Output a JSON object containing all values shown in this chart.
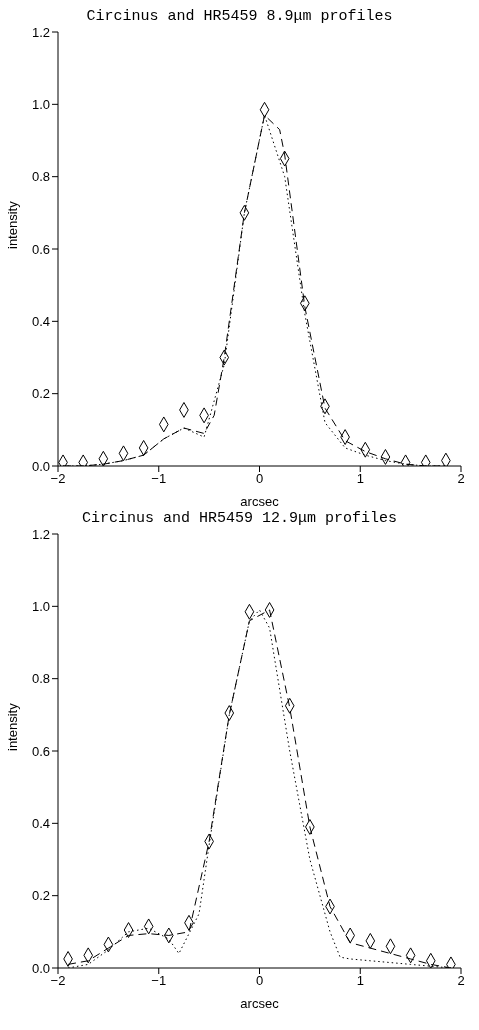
{
  "chart_data": [
    {
      "type": "line",
      "title": "Circinus and HR5459 8.9μm profiles",
      "xlabel": "arcsec",
      "ylabel": "intensity",
      "xlim": [
        -2,
        2
      ],
      "xticks": [
        -2,
        -1,
        0,
        1,
        2
      ],
      "ylim": [
        0,
        1.2
      ],
      "yticks": [
        {
          "value": 0,
          "label": "0.0"
        },
        {
          "value": 0.2,
          "label": "0.2"
        },
        {
          "value": 0.4,
          "label": "0.4"
        },
        {
          "value": 0.6,
          "label": "0.6"
        },
        {
          "value": 0.8,
          "label": "0.8"
        },
        {
          "value": 1,
          "label": "1.0"
        },
        {
          "value": 1.2,
          "label": "1.2"
        }
      ],
      "grid": false,
      "series": [
        {
          "line_style": "dashed",
          "color": "#000000",
          "x": [
            -1.95,
            -1.75,
            -1.55,
            -1.35,
            -1.15,
            -0.95,
            -0.75,
            -0.55,
            -0.45,
            -0.35,
            -0.15,
            0.05,
            0.2,
            0.25,
            0.45,
            0.65,
            0.85,
            1.05,
            1.25,
            1.45,
            1.65,
            1.85
          ],
          "values": [
            0,
            0,
            0.005,
            0.015,
            0.03,
            0.075,
            0.105,
            0.09,
            0.14,
            0.3,
            0.7,
            0.97,
            0.93,
            0.86,
            0.44,
            0.16,
            0.07,
            0.04,
            0.02,
            0.005,
            0,
            0
          ]
        },
        {
          "line_style": "dotted",
          "color": "#000000",
          "x": [
            -1.95,
            -1.75,
            -1.55,
            -1.35,
            -1.15,
            -0.95,
            -0.75,
            -0.55,
            -0.35,
            -0.15,
            0.05,
            0.25,
            0.45,
            0.65,
            0.85,
            1.05,
            1.25,
            1.45,
            1.65,
            1.85
          ],
          "values": [
            0,
            0,
            0.005,
            0.015,
            0.03,
            0.075,
            0.105,
            0.08,
            0.28,
            0.7,
            0.97,
            0.8,
            0.42,
            0.12,
            0.05,
            0.03,
            0.015,
            0.005,
            0,
            0
          ]
        },
        {
          "type": "scatter",
          "marker": "diamond",
          "color": "#000000",
          "x": [
            -1.95,
            -1.75,
            -1.55,
            -1.35,
            -1.15,
            -0.95,
            -0.75,
            -0.55,
            -0.35,
            -0.15,
            0.05,
            0.25,
            0.45,
            0.65,
            0.85,
            1.05,
            1.25,
            1.45,
            1.65,
            1.85
          ],
          "values": [
            0.01,
            0.01,
            0.02,
            0.035,
            0.05,
            0.115,
            0.155,
            0.14,
            0.3,
            0.7,
            0.985,
            0.85,
            0.45,
            0.165,
            0.08,
            0.045,
            0.025,
            0.01,
            0.01,
            0.015
          ]
        }
      ]
    },
    {
      "type": "line",
      "title": "Circinus and HR5459 12.9μm profiles",
      "xlabel": "arcsec",
      "ylabel": "intensity",
      "xlim": [
        -2,
        2
      ],
      "xticks": [
        -2,
        -1,
        0,
        1,
        2
      ],
      "ylim": [
        0,
        1.2
      ],
      "yticks": [
        {
          "value": 0,
          "label": "0.0"
        },
        {
          "value": 0.2,
          "label": "0.2"
        },
        {
          "value": 0.4,
          "label": "0.4"
        },
        {
          "value": 0.6,
          "label": "0.6"
        },
        {
          "value": 0.8,
          "label": "0.8"
        },
        {
          "value": 1,
          "label": "1.0"
        },
        {
          "value": 1.2,
          "label": "1.2"
        }
      ],
      "grid": false,
      "series": [
        {
          "line_style": "dashed",
          "color": "#000000",
          "x": [
            -1.9,
            -1.7,
            -1.5,
            -1.3,
            -1.1,
            -0.9,
            -0.7,
            -0.5,
            -0.3,
            -0.1,
            0.1,
            0.3,
            0.5,
            0.7,
            0.9,
            1.1,
            1.3,
            1.5,
            1.7,
            1.9
          ],
          "values": [
            0.01,
            0.02,
            0.055,
            0.09,
            0.095,
            0.09,
            0.1,
            0.35,
            0.7,
            0.96,
            0.99,
            0.72,
            0.39,
            0.17,
            0.07,
            0.055,
            0.04,
            0.025,
            0.01,
            0
          ]
        },
        {
          "line_style": "dotted",
          "color": "#000000",
          "x": [
            -1.9,
            -1.7,
            -1.5,
            -1.3,
            -1.1,
            -0.9,
            -0.8,
            -0.6,
            -0.5,
            -0.3,
            -0.1,
            0,
            0.1,
            0.3,
            0.5,
            0.7,
            0.8,
            0.9,
            1.1,
            1.5,
            1.9
          ],
          "values": [
            0,
            0.01,
            0.05,
            0.1,
            0.11,
            0.08,
            0.04,
            0.15,
            0.34,
            0.7,
            0.96,
            0.99,
            0.94,
            0.6,
            0.3,
            0.1,
            0.03,
            0.025,
            0.02,
            0.01,
            0
          ]
        },
        {
          "type": "scatter",
          "marker": "diamond",
          "color": "#000000",
          "x": [
            -1.9,
            -1.7,
            -1.5,
            -1.3,
            -1.1,
            -0.9,
            -0.7,
            -0.5,
            -0.3,
            -0.1,
            0.1,
            0.3,
            0.5,
            0.7,
            0.9,
            1.1,
            1.3,
            1.5,
            1.7,
            1.9
          ],
          "values": [
            0.025,
            0.035,
            0.065,
            0.105,
            0.115,
            0.09,
            0.125,
            0.35,
            0.705,
            0.985,
            0.99,
            0.725,
            0.39,
            0.17,
            0.09,
            0.075,
            0.06,
            0.035,
            0.02,
            0.01
          ]
        }
      ]
    }
  ]
}
